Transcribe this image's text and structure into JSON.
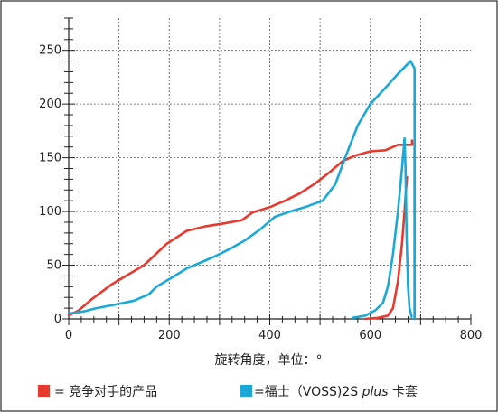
{
  "chart_data": {
    "type": "line",
    "title": "",
    "xlabel": "旋转角度，单位：°",
    "ylabel": "",
    "xlim": [
      0,
      800
    ],
    "ylim": [
      0,
      280
    ],
    "x_ticks": [
      0,
      200,
      400,
      600,
      800
    ],
    "y_ticks": [
      0,
      50,
      100,
      150,
      200,
      250
    ],
    "grid": true,
    "legend_position": "bottom",
    "series": [
      {
        "name": "竞争对手的产品",
        "color": "#e8392f",
        "points": [
          [
            0,
            3
          ],
          [
            20,
            8
          ],
          [
            45,
            18
          ],
          [
            85,
            32
          ],
          [
            150,
            50
          ],
          [
            195,
            70
          ],
          [
            235,
            82
          ],
          [
            270,
            86
          ],
          [
            310,
            89
          ],
          [
            345,
            92
          ],
          [
            365,
            99
          ],
          [
            400,
            104
          ],
          [
            430,
            110
          ],
          [
            460,
            117
          ],
          [
            490,
            126
          ],
          [
            520,
            137
          ],
          [
            545,
            147
          ],
          [
            570,
            152
          ],
          [
            600,
            156
          ],
          [
            630,
            157
          ],
          [
            655,
            162
          ],
          [
            683,
            162
          ],
          [
            683,
            166
          ]
        ]
      },
      {
        "name": "竞争对手的产品",
        "color": "#e8392f",
        "points": [
          [
            590,
            0
          ],
          [
            615,
            1
          ],
          [
            635,
            3
          ],
          [
            645,
            10
          ],
          [
            655,
            35
          ],
          [
            663,
            70
          ],
          [
            668,
            100
          ],
          [
            671,
            120
          ],
          [
            673,
            132
          ]
        ]
      },
      {
        "name": "竞争对手的产品",
        "color": "#e8392f",
        "points": [
          [
            688,
            165
          ],
          [
            688,
            150
          ],
          [
            688,
            0
          ]
        ]
      },
      {
        "name": "福士（VOSS)2S plus 卡套",
        "color": "#1aa9d6",
        "points": [
          [
            0,
            5
          ],
          [
            30,
            7
          ],
          [
            55,
            10
          ],
          [
            90,
            13
          ],
          [
            130,
            17
          ],
          [
            160,
            23
          ],
          [
            175,
            30
          ],
          [
            200,
            37
          ],
          [
            235,
            47
          ],
          [
            265,
            53
          ],
          [
            290,
            58
          ],
          [
            320,
            65
          ],
          [
            350,
            73
          ],
          [
            380,
            83
          ],
          [
            410,
            95
          ],
          [
            440,
            100
          ],
          [
            470,
            104
          ],
          [
            505,
            110
          ],
          [
            530,
            125
          ],
          [
            550,
            150
          ],
          [
            575,
            180
          ],
          [
            600,
            200
          ],
          [
            630,
            215
          ],
          [
            655,
            228
          ],
          [
            680,
            240
          ],
          [
            688,
            233
          ],
          [
            688,
            0
          ]
        ]
      },
      {
        "name": "福士（VOSS)2S plus 卡套",
        "color": "#1aa9d6",
        "points": [
          [
            565,
            1
          ],
          [
            590,
            3
          ],
          [
            610,
            8
          ],
          [
            625,
            15
          ],
          [
            635,
            30
          ],
          [
            645,
            60
          ],
          [
            655,
            100
          ],
          [
            663,
            140
          ],
          [
            668,
            168
          ],
          [
            670,
            140
          ],
          [
            672,
            80
          ],
          [
            675,
            30
          ],
          [
            678,
            10
          ],
          [
            682,
            2
          ]
        ]
      }
    ]
  },
  "legend": {
    "items": [
      {
        "name": "竞争对手的产品",
        "color": "#e8392f",
        "prefix": "= ",
        "label": "竞争对手的产品"
      },
      {
        "name": "福士（VOSS)2S plus 卡套",
        "color": "#1aa9d6",
        "prefix": "=",
        "label_main": "福士（VOSS)2S ",
        "label_italic": "plus",
        "label_tail": " 卡套"
      }
    ]
  }
}
